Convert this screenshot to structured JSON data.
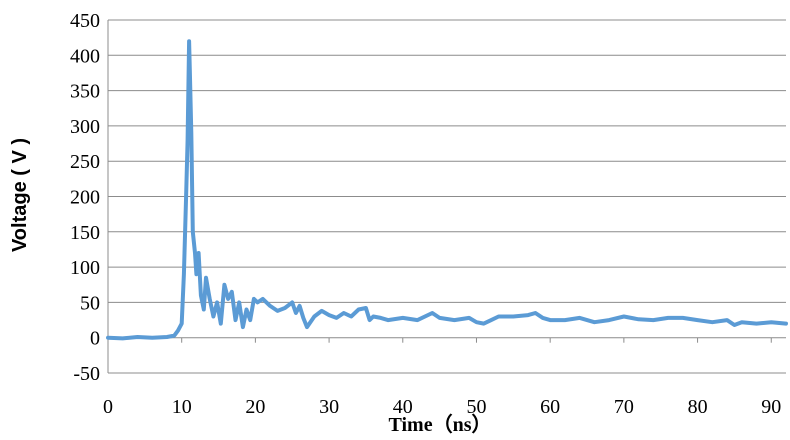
{
  "chart_data": {
    "type": "line",
    "title": "",
    "xlabel": "Time（ns）",
    "ylabel": "Voltage ( V )",
    "xlim": [
      0,
      92
    ],
    "ylim": [
      -50,
      450
    ],
    "xticks": [
      0,
      10,
      20,
      30,
      40,
      50,
      60,
      70,
      80,
      90
    ],
    "yticks": [
      -50,
      0,
      50,
      100,
      150,
      200,
      250,
      300,
      350,
      400,
      450
    ],
    "grid": "horizontal",
    "legend": "none",
    "line_color": "#5b9bd5",
    "series": [
      {
        "x": [
          0,
          2,
          4,
          6,
          8,
          9,
          9.5,
          10,
          10.3,
          10.6,
          10.8,
          11.0,
          11.1,
          11.3,
          11.5,
          11.8,
          12.0,
          12.3,
          12.6,
          13.0,
          13.3,
          13.8,
          14.3,
          14.8,
          15.3,
          15.8,
          16.3,
          16.8,
          17.3,
          17.8,
          18.3,
          18.8,
          19.3,
          19.8,
          20.3,
          21.0,
          22.0,
          23.0,
          24.0,
          25.0,
          25.5,
          26.0,
          26.5,
          27.0,
          28.0,
          29.0,
          30.0,
          31.0,
          32.0,
          33.0,
          34.0,
          35.0,
          35.5,
          36.0,
          37.0,
          38.0,
          40.0,
          42.0,
          44.0,
          45.0,
          47.0,
          49.0,
          50.0,
          51.0,
          52.0,
          53.0,
          55.0,
          57.0,
          58.0,
          59.0,
          60.0,
          62.0,
          64.0,
          66.0,
          68.0,
          70.0,
          72.0,
          74.0,
          76.0,
          78.0,
          80.0,
          82.0,
          84.0,
          85.0,
          86.0,
          88.0,
          90.0,
          92.0
        ],
        "y": [
          0,
          -1,
          1,
          0,
          1,
          3,
          10,
          20,
          90,
          200,
          280,
          420,
          380,
          290,
          150,
          120,
          90,
          120,
          60,
          40,
          85,
          55,
          30,
          50,
          20,
          75,
          55,
          65,
          25,
          50,
          15,
          40,
          25,
          55,
          50,
          55,
          45,
          38,
          42,
          50,
          35,
          45,
          28,
          15,
          30,
          38,
          32,
          28,
          35,
          30,
          40,
          42,
          25,
          30,
          28,
          25,
          28,
          25,
          35,
          28,
          25,
          28,
          22,
          20,
          25,
          30,
          30,
          32,
          35,
          28,
          25,
          25,
          28,
          22,
          25,
          30,
          26,
          25,
          28,
          28,
          25,
          22,
          25,
          18,
          22,
          20,
          22,
          20
        ]
      }
    ]
  }
}
